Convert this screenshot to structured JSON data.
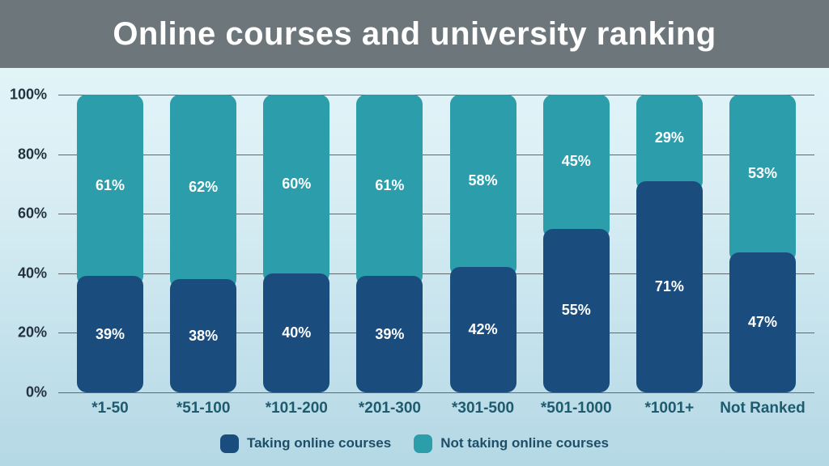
{
  "header": {
    "bg_color": "#6C767B",
    "title_color": "#ffffff"
  },
  "colors": {
    "background_top": "#e6f8fb",
    "background_bottom": "#b4d8e5",
    "gridline": "#5e686d",
    "y_axis_label": "#24323f",
    "x_axis_label": "#1d5b6f",
    "legend_text": "#1e4f68",
    "bar_value_text": "#ffffff"
  },
  "chart_data": {
    "type": "bar",
    "stacked": true,
    "title": "Online courses and university ranking",
    "categories": [
      "*1-50",
      "*51-100",
      "*101-200",
      "*201-300",
      "*301-500",
      "*501-1000",
      "*1001+",
      "Not Ranked"
    ],
    "series": [
      {
        "name": "Taking online courses",
        "color": "#1A4D7D",
        "values": [
          39,
          38,
          40,
          39,
          42,
          55,
          71,
          47
        ]
      },
      {
        "name": "Not taking online courses",
        "color": "#2B9DAB",
        "values": [
          61,
          62,
          60,
          61,
          58,
          45,
          29,
          53
        ]
      }
    ],
    "value_suffix": "%",
    "ylim": [
      0,
      100
    ],
    "yticks": [
      {
        "label": "0%",
        "value": 0
      },
      {
        "label": "20%",
        "value": 20
      },
      {
        "label": "40%",
        "value": 40
      },
      {
        "label": "60%",
        "value": 60
      },
      {
        "label": "80%",
        "value": 80
      },
      {
        "label": "100%",
        "value": 100
      }
    ],
    "grid": true,
    "legend_position": "bottom"
  }
}
